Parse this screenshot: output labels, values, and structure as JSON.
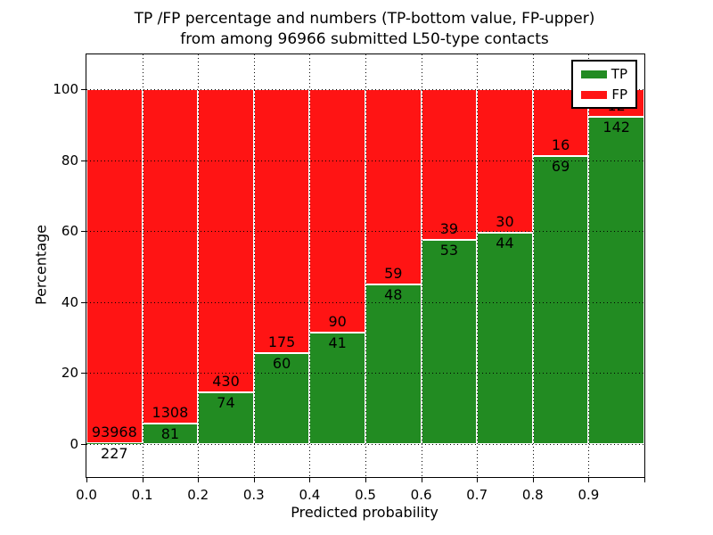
{
  "title": {
    "line1": "TP /FP percentage and numbers (TP-bottom value, FP-upper)",
    "line2": "from among 96966 submitted L50-type contacts"
  },
  "chart_data": {
    "type": "bar",
    "stacked": true,
    "normalized_to_percent": true,
    "title_line1": "TP /FP percentage and numbers (TP-bottom value, FP-upper)",
    "title_line2": "from among 96966 submitted L50-type contacts",
    "total_contacts": 96966,
    "xlabel": "Predicted probability",
    "ylabel": "Percentage",
    "xlim": [
      0.0,
      1.0
    ],
    "ylim": [
      -9.3,
      109.8
    ],
    "x_ticks": [
      "0.0",
      "0.1",
      "0.2",
      "0.3",
      "0.4",
      "0.5",
      "0.6",
      "0.7",
      "0.8",
      "0.9"
    ],
    "y_ticks": [
      0,
      20,
      40,
      60,
      80,
      100
    ],
    "grid": "dotted",
    "bin_width": 0.1,
    "categories": [
      "0.0-0.1",
      "0.1-0.2",
      "0.2-0.3",
      "0.3-0.4",
      "0.4-0.5",
      "0.5-0.6",
      "0.6-0.7",
      "0.7-0.8",
      "0.8-0.9",
      "0.9-1.0"
    ],
    "series": [
      {
        "name": "TP",
        "color": "#228b22",
        "counts": [
          227,
          81,
          74,
          60,
          41,
          48,
          53,
          44,
          69,
          142
        ]
      },
      {
        "name": "FP",
        "color": "#ff1414",
        "counts": [
          93968,
          1308,
          430,
          175,
          90,
          59,
          39,
          30,
          16,
          12
        ]
      }
    ],
    "tp_percent": [
      0.24,
      5.83,
      14.68,
      25.53,
      31.3,
      44.86,
      57.61,
      59.46,
      81.18,
      92.21
    ],
    "legend": {
      "position": "upper right",
      "entries": [
        {
          "label": "TP",
          "color": "#228b22"
        },
        {
          "label": "FP",
          "color": "#ff1414"
        }
      ]
    }
  }
}
